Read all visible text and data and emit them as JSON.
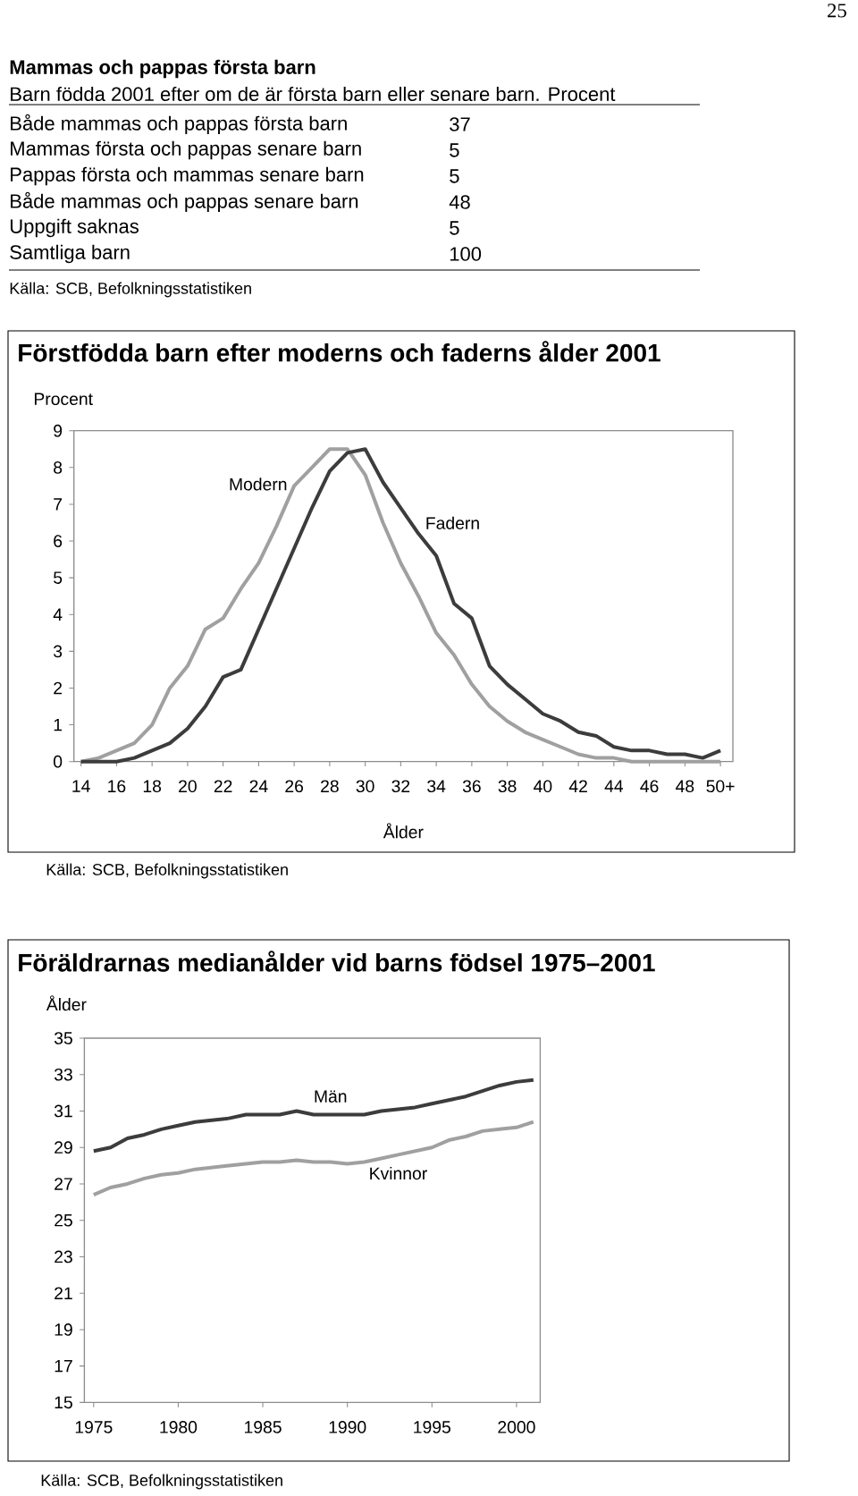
{
  "chart_data": [
    {
      "type": "other",
      "title": "Mammas och pappas första barn",
      "subtitle": "Barn födda 2001 efter om de är första barn eller  senare barn. Procent",
      "categories": [
        "Både mammas och pappas första barn",
        "Mammas första och pappas senare barn",
        "Pappas första och mammas senare barn",
        "Både mammas och pappas senare barn",
        "Uppgift saknas",
        "Samtliga barn"
      ],
      "values": [
        37,
        5,
        5,
        48,
        5,
        100
      ],
      "data_labels": true,
      "annotations": [
        "25",
        "Källa: SCB, Befolkningsstatistiken"
      ]
    },
    {
      "type": "line",
      "title": "Förstfödda barn efter moderns och faderns ålder 2001",
      "ylabel": "Procent",
      "xlabel": "Ålder",
      "x": [
        14,
        15,
        16,
        17,
        18,
        19,
        20,
        21,
        22,
        23,
        24,
        25,
        26,
        27,
        28,
        29,
        30,
        31,
        32,
        33,
        34,
        35,
        36,
        37,
        38,
        39,
        40,
        41,
        42,
        43,
        44,
        45,
        46,
        47,
        48,
        49,
        50
      ],
      "series": [
        {
          "name": "Modern",
          "color": "#a0a0a0",
          "values": [
            0,
            0.1,
            0.3,
            0.5,
            1.0,
            2.0,
            2.6,
            3.6,
            3.9,
            4.7,
            5.4,
            6.4,
            7.5,
            8.0,
            8.5,
            8.5,
            7.8,
            6.5,
            5.4,
            4.5,
            3.5,
            2.9,
            2.1,
            1.5,
            1.1,
            0.8,
            0.6,
            0.4,
            0.2,
            0.1,
            0.1,
            0,
            0,
            0,
            0,
            0,
            0
          ]
        },
        {
          "name": "Fadern",
          "color": "#3c3c3c",
          "values": [
            0,
            0,
            0,
            0.1,
            0.3,
            0.5,
            0.9,
            1.5,
            2.3,
            2.5,
            3.6,
            4.7,
            5.8,
            6.9,
            7.9,
            8.4,
            8.5,
            7.6,
            6.9,
            6.2,
            5.6,
            4.3,
            3.9,
            2.6,
            2.1,
            1.7,
            1.3,
            1.1,
            0.8,
            0.7,
            0.4,
            0.3,
            0.3,
            0.2,
            0.2,
            0.1,
            0.3
          ]
        }
      ],
      "xlim": [
        13.6,
        50.7
      ],
      "xticks": [
        14,
        16,
        18,
        20,
        22,
        24,
        26,
        28,
        30,
        32,
        34,
        36,
        38,
        40,
        42,
        44,
        46,
        48,
        {
          "value": 50,
          "label": "50+"
        }
      ],
      "ylim": [
        0,
        9
      ],
      "yticks": [
        0,
        1,
        2,
        3,
        4,
        5,
        6,
        7,
        8,
        9
      ],
      "annotations": [
        "Källa: SCB, Befolkningsstatistiken"
      ]
    },
    {
      "type": "line",
      "title": "Föräldrarnas medianålder vid barns födsel 1975–2001",
      "ylabel": "Ålder",
      "x": [
        1975,
        1976,
        1977,
        1978,
        1979,
        1980,
        1981,
        1982,
        1983,
        1984,
        1985,
        1986,
        1987,
        1988,
        1989,
        1990,
        1991,
        1992,
        1993,
        1994,
        1995,
        1996,
        1997,
        1998,
        1999,
        2000,
        2001
      ],
      "series": [
        {
          "name": "Män",
          "color": "#3c3c3c",
          "values": [
            28.8,
            29.0,
            29.5,
            29.7,
            30.0,
            30.2,
            30.4,
            30.5,
            30.6,
            30.8,
            30.8,
            30.8,
            31.0,
            30.8,
            30.8,
            30.8,
            30.8,
            31.0,
            31.1,
            31.2,
            31.4,
            31.6,
            31.8,
            32.1,
            32.4,
            32.6,
            32.7
          ]
        },
        {
          "name": "Kvinnor",
          "color": "#a0a0a0",
          "values": [
            26.4,
            26.8,
            27.0,
            27.3,
            27.5,
            27.6,
            27.8,
            27.9,
            28.0,
            28.1,
            28.2,
            28.2,
            28.3,
            28.2,
            28.2,
            28.1,
            28.2,
            28.4,
            28.6,
            28.8,
            29.0,
            29.4,
            29.6,
            29.9,
            30.0,
            30.1,
            30.4
          ]
        }
      ],
      "xlim": [
        1974.45,
        2001.4
      ],
      "xticks": [
        1975,
        1980,
        1985,
        1990,
        1995,
        2000
      ],
      "ylim": [
        15,
        35
      ],
      "yticks": [
        15,
        17,
        19,
        21,
        23,
        25,
        27,
        29,
        31,
        33,
        35
      ],
      "annotations": [
        "Källa: SCB, Befolkningsstatistiken"
      ]
    }
  ]
}
